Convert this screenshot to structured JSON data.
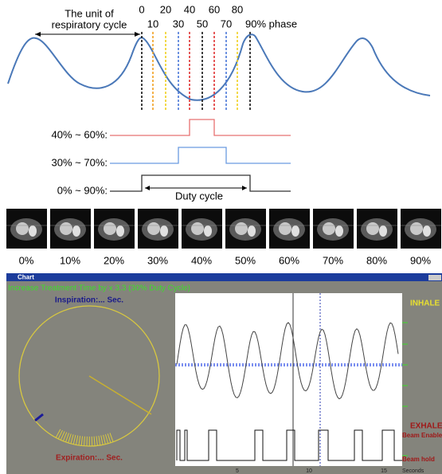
{
  "diagram": {
    "cycle_label": [
      "The unit of",
      "respiratory cycle"
    ],
    "phases": {
      "top": [
        "0",
        "20",
        "40",
        "60",
        "80"
      ],
      "bottom": [
        "10",
        "30",
        "50",
        "70",
        "90% phase"
      ]
    },
    "gates": [
      "40% ~ 60%:",
      "30% ~ 70%:",
      "0% ~ 90%:"
    ],
    "duty_cycle": "Duty cycle",
    "image_labels": [
      "0%",
      "10%",
      "20%",
      "30%",
      "40%",
      "50%",
      "60%",
      "70%",
      "80%",
      "90%"
    ]
  },
  "window": {
    "title": "Chart",
    "banner": "Increase Treatment Time by x 3.3 (30% Duty Cycle)",
    "inspiration": "Inspiration:... Sec.",
    "expiration": "Expiration:... Sec.",
    "inhale": "INHALE",
    "exhale": "EXHALE",
    "beam_enable": "Beam Enable",
    "beam_hold": "Beam hold",
    "x_ticks": [
      "5",
      "10",
      "15"
    ],
    "x_axis_label": "Seconds"
  }
}
